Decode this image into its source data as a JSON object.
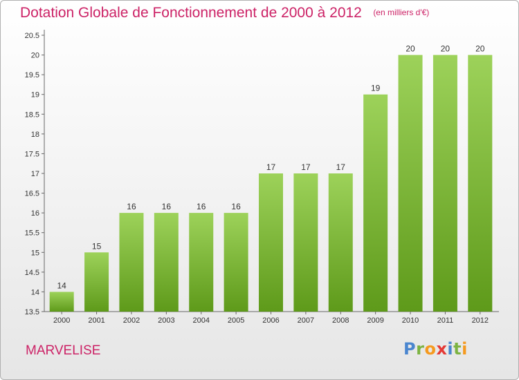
{
  "chart_data": {
    "type": "bar",
    "title": "Dotation Globale de Fonctionnement de 2000 à 2012",
    "subtitle": "(en milliers d'€)",
    "categories": [
      "2000",
      "2001",
      "2002",
      "2003",
      "2004",
      "2005",
      "2006",
      "2007",
      "2008",
      "2009",
      "2010",
      "2011",
      "2012"
    ],
    "values": [
      14,
      15,
      16,
      16,
      16,
      16,
      17,
      17,
      17,
      19,
      20,
      20,
      20
    ],
    "data_labels": [
      "14",
      "15",
      "16",
      "16",
      "16",
      "16",
      "17",
      "17",
      "17",
      "19",
      "20",
      "20",
      "20"
    ],
    "yticks": [
      "13.5",
      "14",
      "14.5",
      "15",
      "15.5",
      "16",
      "16.5",
      "17",
      "17.5",
      "18",
      "18.5",
      "19",
      "19.5",
      "20",
      "20.5"
    ],
    "ylim": [
      13.5,
      20.5
    ],
    "grid": false,
    "bar_color": "#7dbb2e",
    "bar_color_light": "#9dd25a"
  },
  "footer": {
    "commune": "MARVELISE",
    "logo": "Proxiti"
  },
  "colors": {
    "accent": "#cc2266"
  }
}
